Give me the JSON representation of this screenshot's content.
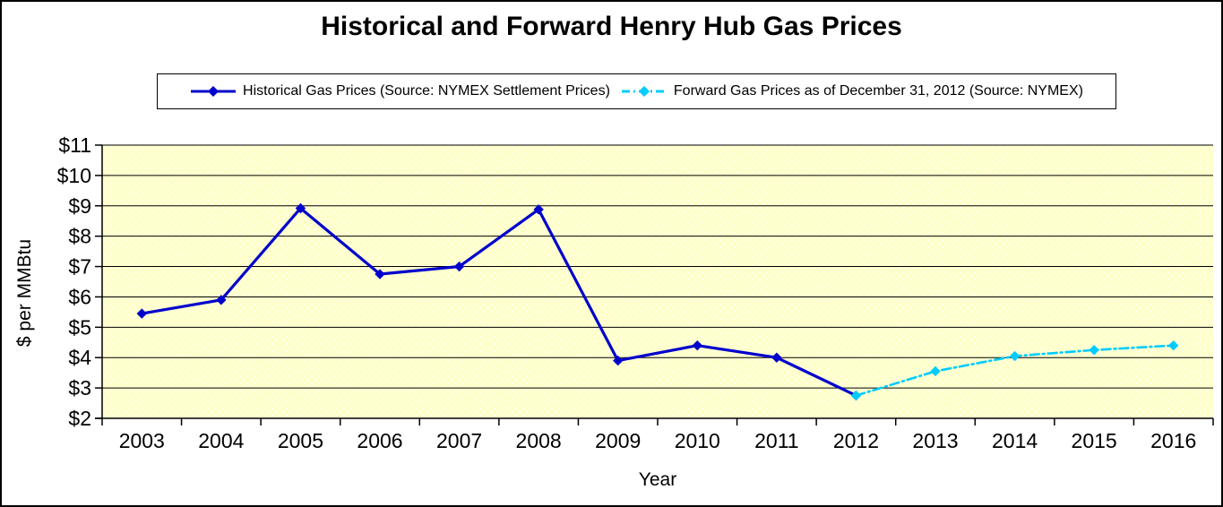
{
  "chart_data": {
    "type": "line",
    "title": "Historical and Forward Henry Hub Gas Prices",
    "xlabel": "Year",
    "ylabel": "$ per MMBtu",
    "categories": [
      2003,
      2004,
      2005,
      2006,
      2007,
      2008,
      2009,
      2010,
      2011,
      2012,
      2013,
      2014,
      2015,
      2016
    ],
    "series": [
      {
        "name": "Historical Gas Prices (Source: NYMEX Settlement Prices)",
        "color": "#0000CC",
        "line_style": "solid",
        "marker": "diamond",
        "x": [
          2003,
          2004,
          2005,
          2006,
          2007,
          2008,
          2009,
          2010,
          2011,
          2012
        ],
        "values": [
          5.45,
          5.9,
          8.92,
          6.75,
          7.0,
          8.88,
          3.9,
          4.4,
          4.0,
          2.75
        ]
      },
      {
        "name": "Forward Gas Prices as of December 31, 2012 (Source: NYMEX)",
        "color": "#00CCFF",
        "line_style": "dash-dot",
        "marker": "diamond",
        "x": [
          2012,
          2013,
          2014,
          2015,
          2016
        ],
        "values": [
          2.75,
          3.55,
          4.05,
          4.25,
          4.4
        ]
      }
    ],
    "ylim": [
      2,
      11
    ],
    "y_ticks": [
      2,
      3,
      4,
      5,
      6,
      7,
      8,
      9,
      10,
      11
    ],
    "y_tick_labels": [
      "$2",
      "$3",
      "$4",
      "$5",
      "$6",
      "$7",
      "$8",
      "$9",
      "$10",
      "$11"
    ],
    "grid": "horizontal",
    "legend_position": "top",
    "colors": {
      "plot_bg": "#FFFFCC",
      "plot_bg_dot": "#FFFFEE",
      "grid": "#000000",
      "axis": "#000000"
    }
  }
}
